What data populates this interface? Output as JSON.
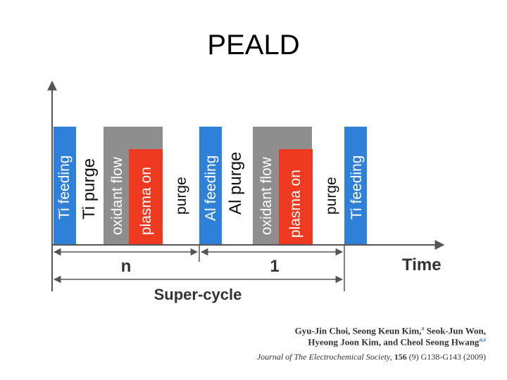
{
  "title": "PEALD",
  "colors": {
    "precursor": "#2f80d8",
    "oxidant": "#8e8e8e",
    "plasma": "#ee3a21",
    "axis": "#555555",
    "label_light": "#ffffff",
    "label_dark": "#111111"
  },
  "pulses": [
    {
      "id": "ti-feeding-1",
      "label": "Ti feeding",
      "kind": "precursor"
    },
    {
      "id": "ti-purge",
      "label": "Ti purge",
      "kind": "purge"
    },
    {
      "id": "oxidant-flow-1",
      "label": "oxidant flow",
      "kind": "oxidant"
    },
    {
      "id": "plasma-on-1",
      "label": "plasma on",
      "kind": "plasma"
    },
    {
      "id": "purge-1",
      "label": "purge",
      "kind": "purge"
    },
    {
      "id": "al-feeding",
      "label": "Al feeding",
      "kind": "precursor"
    },
    {
      "id": "al-purge",
      "label": "Al purge",
      "kind": "purge"
    },
    {
      "id": "oxidant-flow-2",
      "label": "oxidant flow",
      "kind": "oxidant"
    },
    {
      "id": "plasma-on-2",
      "label": "plasma on",
      "kind": "plasma"
    },
    {
      "id": "purge-2",
      "label": "purge",
      "kind": "purge"
    },
    {
      "id": "ti-feeding-2",
      "label": "Ti feeding",
      "kind": "precursor"
    }
  ],
  "axis": {
    "x_label": "Time"
  },
  "spans": {
    "n_label": "n",
    "one_label": "1",
    "super_label": "Super-cycle"
  },
  "citation": {
    "authors_line1": "Gyu-Jin Choi, Seong Keun Kim,",
    "authors_line1_sup": "a",
    "authors_line1_rest": " Seok-Jun Won,",
    "authors_line2": "Hyeong Joon Kim, and Cheol Seong Hwang",
    "authors_line2_sup": "a,z",
    "journal": "Journal of The Electrochemical Society,",
    "volume": "156",
    "pages": "(9) G138-G143 (2009)"
  }
}
